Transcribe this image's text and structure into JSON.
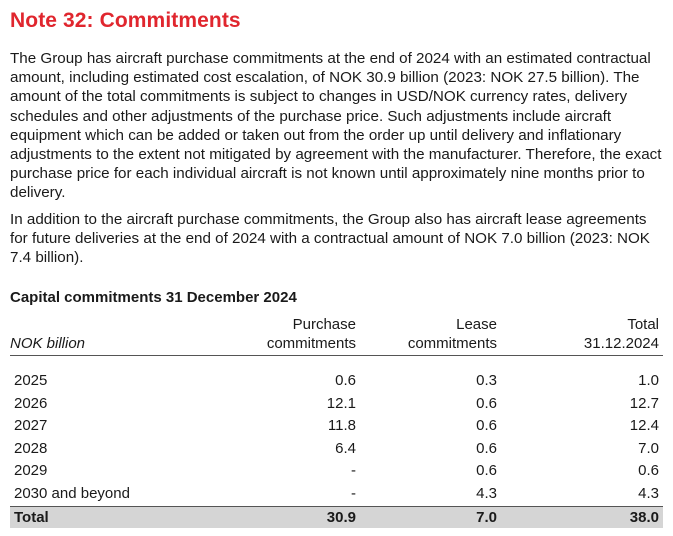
{
  "note": {
    "title": "Note 32: Commitments",
    "paragraphs": [
      "The Group has aircraft purchase commitments at the end of 2024 with an estimated contractual amount, including estimated cost escalation, of NOK 30.9 billion (2023: NOK 27.5 billion).  The amount of the total commitments is subject to changes in USD/NOK currency rates, delivery schedules and other adjustments of the purchase price. Such adjustments include aircraft equipment which can be added or taken out from the order up until delivery and inflationary adjustments to the extent not mitigated by agreement with the manufacturer. Therefore, the exact purchase price for each individual aircraft is not known until approximately nine months prior to delivery.",
      "In addition to the aircraft purchase commitments, the Group also has aircraft lease agreements for future deliveries at the end of 2024 with a contractual amount of NOK 7.0 billion (2023: NOK 7.4 billion)."
    ]
  },
  "table": {
    "title": "Capital commitments 31 December 2024",
    "headers": {
      "label": "NOK billion",
      "col1_line1": "Purchase",
      "col1_line2": "commitments",
      "col2_line1": "Lease",
      "col2_line2": "commitments",
      "col3_line1": "Total",
      "col3_line2": "31.12.2024"
    },
    "rows": [
      {
        "label": "2025",
        "purchase": "0.6",
        "lease": "0.3",
        "total": "1.0"
      },
      {
        "label": "2026",
        "purchase": "12.1",
        "lease": "0.6",
        "total": "12.7"
      },
      {
        "label": "2027",
        "purchase": "11.8",
        "lease": "0.6",
        "total": "12.4"
      },
      {
        "label": "2028",
        "purchase": "6.4",
        "lease": "0.6",
        "total": "7.0"
      },
      {
        "label": "2029",
        "purchase": "-",
        "lease": "0.6",
        "total": "0.6"
      },
      {
        "label": "2030 and beyond",
        "purchase": "-",
        "lease": "4.3",
        "total": "4.3"
      }
    ],
    "total": {
      "label": "Total",
      "purchase": "30.9",
      "lease": "7.0",
      "total": "38.0"
    }
  },
  "colors": {
    "title_red": "#e0262e",
    "total_row_bg": "#d5d5d5"
  }
}
